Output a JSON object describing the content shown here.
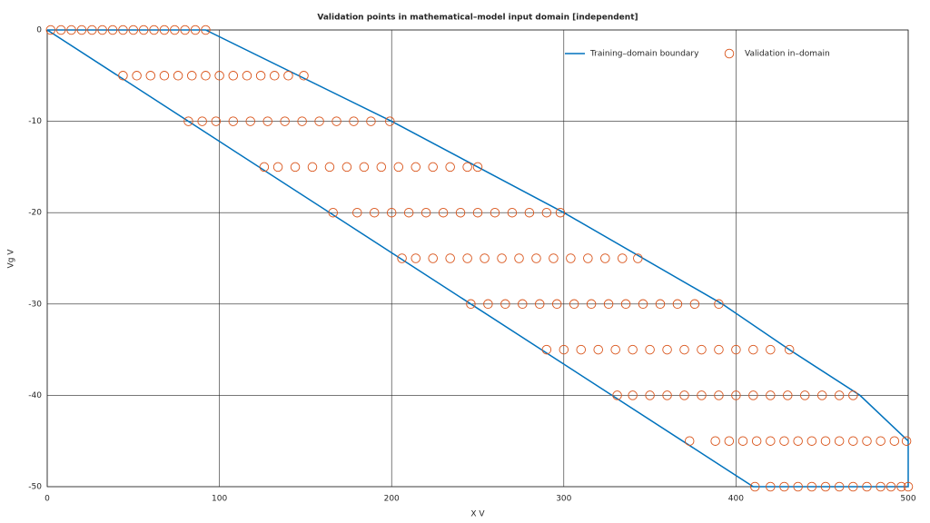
{
  "chart_data": {
    "type": "scatter",
    "title": "Validation points in mathematical–model input domain [independent]",
    "x_label": "X V",
    "y_label": "Vg V",
    "xlim": [
      0,
      500
    ],
    "ylim": [
      -50,
      0
    ],
    "xticks": [
      0,
      100,
      200,
      300,
      400,
      500
    ],
    "yticks": [
      0,
      -10,
      -20,
      -30,
      -40,
      -50
    ],
    "grid": true,
    "legend": "top-right",
    "series": [
      {
        "name": "Training–domain boundary",
        "color": "#0072bd",
        "style": "line",
        "x": [
          0,
          92,
          200,
          300,
          392,
          431,
          472,
          500,
          500,
          410,
          0
        ],
        "values": [
          0,
          0,
          -10,
          -20,
          -30,
          -35,
          -40,
          -45,
          -50,
          -50,
          0
        ]
      },
      {
        "name": "Validation in–domain",
        "color": "#d95319",
        "style": "circle",
        "x": [
          2,
          8,
          14,
          20,
          26,
          32,
          38,
          44,
          50,
          56,
          62,
          68,
          74,
          80,
          86,
          92,
          44,
          52,
          60,
          68,
          76,
          84,
          92,
          100,
          108,
          116,
          124,
          132,
          140,
          149,
          82,
          90,
          98,
          108,
          118,
          128,
          138,
          148,
          158,
          168,
          178,
          188,
          199,
          126,
          134,
          144,
          154,
          164,
          174,
          184,
          194,
          204,
          214,
          224,
          234,
          244,
          250,
          166,
          180,
          190,
          200,
          210,
          220,
          230,
          240,
          250,
          260,
          270,
          280,
          290,
          298,
          206,
          214,
          224,
          234,
          244,
          254,
          264,
          274,
          284,
          294,
          304,
          314,
          324,
          334,
          343,
          246,
          256,
          266,
          276,
          286,
          296,
          306,
          316,
          326,
          336,
          346,
          356,
          366,
          376,
          390,
          290,
          300,
          310,
          320,
          330,
          340,
          350,
          360,
          370,
          380,
          390,
          400,
          410,
          420,
          431,
          331,
          340,
          350,
          360,
          370,
          380,
          390,
          400,
          410,
          420,
          430,
          440,
          450,
          460,
          468,
          373,
          388,
          396,
          404,
          412,
          420,
          428,
          436,
          444,
          452,
          460,
          468,
          476,
          484,
          492,
          499,
          411,
          420,
          428,
          436,
          444,
          452,
          460,
          468,
          476,
          484,
          490,
          496,
          500
        ],
        "values": [
          0,
          0,
          0,
          0,
          0,
          0,
          0,
          0,
          0,
          0,
          0,
          0,
          0,
          0,
          0,
          0,
          -5,
          -5,
          -5,
          -5,
          -5,
          -5,
          -5,
          -5,
          -5,
          -5,
          -5,
          -5,
          -5,
          -5,
          -10,
          -10,
          -10,
          -10,
          -10,
          -10,
          -10,
          -10,
          -10,
          -10,
          -10,
          -10,
          -10,
          -15,
          -15,
          -15,
          -15,
          -15,
          -15,
          -15,
          -15,
          -15,
          -15,
          -15,
          -15,
          -15,
          -15,
          -20,
          -20,
          -20,
          -20,
          -20,
          -20,
          -20,
          -20,
          -20,
          -20,
          -20,
          -20,
          -20,
          -20,
          -25,
          -25,
          -25,
          -25,
          -25,
          -25,
          -25,
          -25,
          -25,
          -25,
          -25,
          -25,
          -25,
          -25,
          -25,
          -30,
          -30,
          -30,
          -30,
          -30,
          -30,
          -30,
          -30,
          -30,
          -30,
          -30,
          -30,
          -30,
          -30,
          -30,
          -35,
          -35,
          -35,
          -35,
          -35,
          -35,
          -35,
          -35,
          -35,
          -35,
          -35,
          -35,
          -35,
          -35,
          -35,
          -40,
          -40,
          -40,
          -40,
          -40,
          -40,
          -40,
          -40,
          -40,
          -40,
          -40,
          -40,
          -40,
          -40,
          -40,
          -45,
          -45,
          -45,
          -45,
          -45,
          -45,
          -45,
          -45,
          -45,
          -45,
          -45,
          -45,
          -45,
          -45,
          -45,
          -45,
          -50,
          -50,
          -50,
          -50,
          -50,
          -50,
          -50,
          -50,
          -50,
          -50,
          -50,
          -50,
          -50
        ]
      }
    ]
  }
}
